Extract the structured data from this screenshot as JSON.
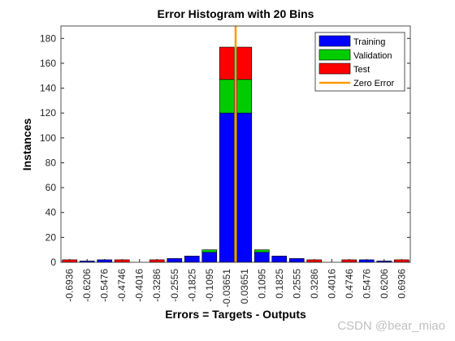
{
  "chart_data": {
    "type": "stacked_histogram",
    "title": "Error Histogram with 20 Bins",
    "x_label": "Errors = Targets - Outputs",
    "y_label": "Instances",
    "x": [
      -0.6936,
      -0.6206,
      -0.5476,
      -0.4746,
      -0.4016,
      -0.3286,
      -0.2555,
      -0.1825,
      -0.1095,
      -0.03651,
      0.03651,
      0.1095,
      0.1825,
      0.2555,
      0.3286,
      0.4016,
      0.4746,
      0.5476,
      0.6206,
      0.6936
    ],
    "xlim": [
      -0.73,
      0.73
    ],
    "series": [
      {
        "name": "Training",
        "color": "#0000ff",
        "values": [
          0,
          1,
          2,
          0,
          0,
          0,
          3,
          5,
          8,
          120,
          120,
          8,
          5,
          3,
          0,
          0,
          0,
          2,
          1,
          0
        ]
      },
      {
        "name": "Validation",
        "color": "#00cc00",
        "values": [
          0,
          0,
          0,
          0,
          0,
          0,
          0,
          0,
          2,
          27,
          27,
          2,
          0,
          0,
          0,
          0,
          0,
          0,
          0,
          0
        ]
      },
      {
        "name": "Test",
        "color": "#ff0000",
        "values": [
          2,
          0,
          0,
          2,
          0,
          2,
          0,
          0,
          0,
          26,
          26,
          0,
          0,
          0,
          2,
          0,
          2,
          0,
          0,
          2
        ]
      }
    ],
    "reference_line": {
      "name": "Zero Error",
      "color": "#ff9900",
      "x": 0
    },
    "ylim": [
      0,
      190
    ],
    "yticks": [
      0,
      20,
      40,
      60,
      80,
      100,
      120,
      140,
      160,
      180
    ],
    "legend": "upper-right",
    "watermark": "CSDN @bear_miao"
  }
}
